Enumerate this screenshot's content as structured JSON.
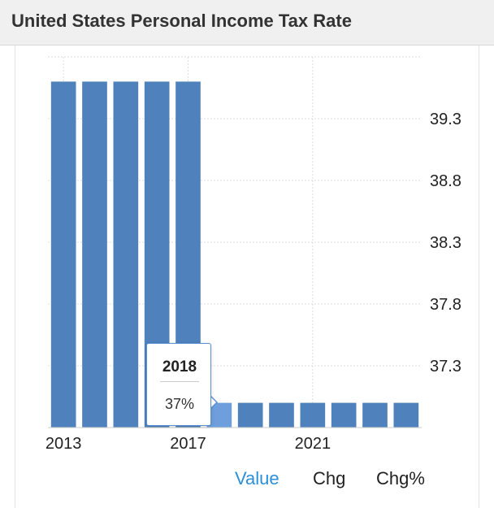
{
  "header": {
    "title": "United States Personal Income Tax Rate"
  },
  "tooltip": {
    "year": "2018",
    "value": "37%"
  },
  "tabs": [
    {
      "label": "Value",
      "active": true
    },
    {
      "label": "Chg",
      "active": false
    },
    {
      "label": "Chg%",
      "active": false
    }
  ],
  "colors": {
    "bar": "#4f81bd",
    "bar_highlight": "#6e9fdc",
    "grid": "#dddddd",
    "accent": "#2b8fd9"
  },
  "chart_data": {
    "type": "bar",
    "title": "United States Personal Income Tax Rate",
    "x": [
      2013,
      2014,
      2015,
      2016,
      2017,
      2018,
      2019,
      2020,
      2021,
      2022,
      2023,
      2024
    ],
    "values": [
      39.6,
      39.6,
      39.6,
      39.6,
      39.6,
      37,
      37,
      37,
      37,
      37,
      37,
      37
    ],
    "unit": "%",
    "highlighted_index": 5,
    "x_ticks": [
      "2013",
      "2017",
      "2021"
    ],
    "y_ticks": [
      "37.3",
      "37.8",
      "38.3",
      "38.8",
      "39.3"
    ],
    "y_tick_values": [
      37.3,
      37.8,
      38.3,
      38.8,
      39.3
    ],
    "ylim": [
      36.8,
      39.8
    ],
    "y_axis_position": "right",
    "grid": true
  }
}
